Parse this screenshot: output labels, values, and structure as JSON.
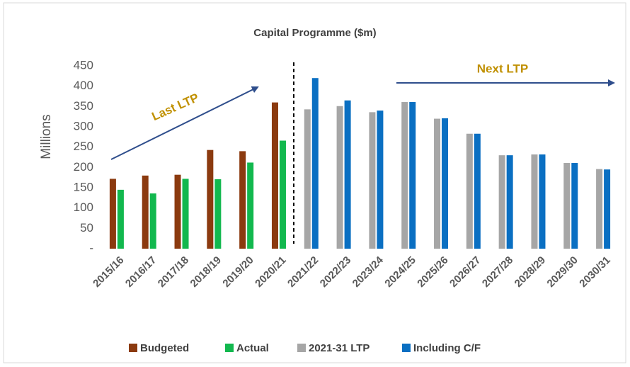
{
  "chart_data": {
    "type": "bar",
    "title": "Capital Programme ($m)",
    "y_label": "Millions",
    "annotations": [
      "Last LTP",
      "Next LTP"
    ],
    "categories": [
      "2015/16",
      "2016/17",
      "2017/18",
      "2018/19",
      "2019/20",
      "2020/21",
      "2021/22",
      "2022/23",
      "2023/24",
      "2024/25",
      "2025/26",
      "2026/27",
      "2027/28",
      "2028/29",
      "2029/30",
      "2030/31"
    ],
    "series": [
      {
        "name": "Budgeted",
        "color": "#8b3a0f",
        "values": [
          172,
          180,
          182,
          243,
          240,
          360,
          null,
          null,
          null,
          null,
          null,
          null,
          null,
          null,
          null,
          null
        ]
      },
      {
        "name": "Actual",
        "color": "#12b84e",
        "values": [
          145,
          136,
          172,
          171,
          212,
          266,
          null,
          null,
          null,
          null,
          null,
          null,
          null,
          null,
          null,
          null
        ]
      },
      {
        "name": "2021-31 LTP",
        "color": "#a6a6a6",
        "values": [
          null,
          null,
          null,
          null,
          null,
          null,
          343,
          351,
          336,
          361,
          320,
          283,
          230,
          232,
          211,
          196
        ]
      },
      {
        "name": "Including C/F",
        "color": "#0a6fc2",
        "values": [
          null,
          null,
          null,
          null,
          null,
          null,
          420,
          365,
          340,
          361,
          321,
          283,
          230,
          232,
          211,
          195
        ]
      }
    ],
    "ylim": [
      0,
      450
    ],
    "yticks": [
      {
        "value": 0,
        "label": "-"
      },
      50,
      100,
      150,
      200,
      250,
      300,
      350,
      400,
      450
    ]
  }
}
